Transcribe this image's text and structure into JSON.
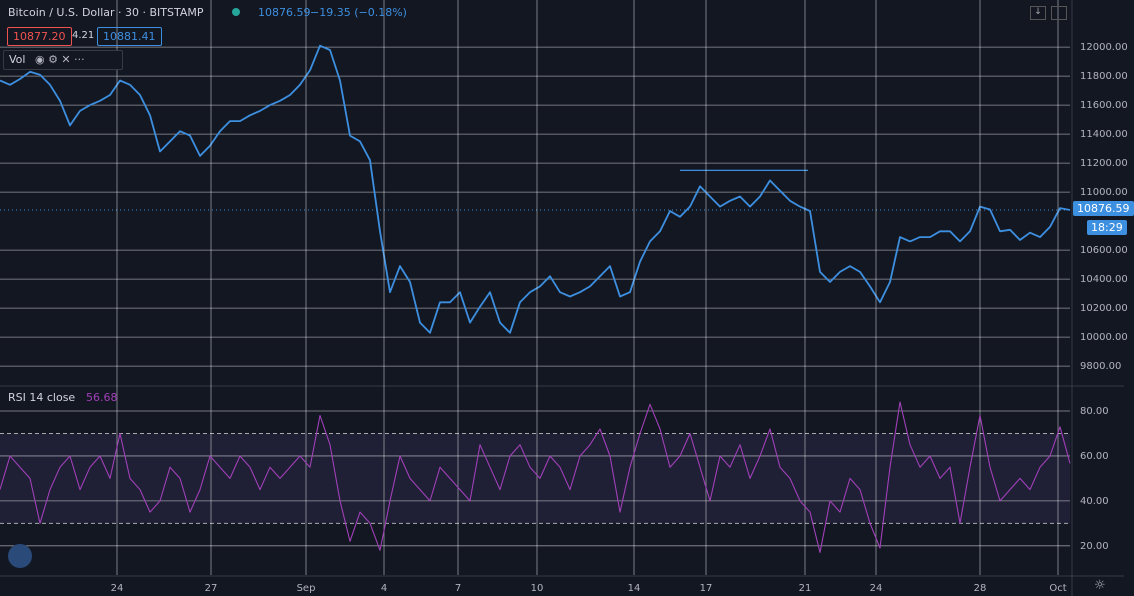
{
  "header": {
    "symbol": "Bitcoin / U.S. Dollar · 30 · BITSTAMP",
    "change": "−19.35 (−0.18%)",
    "bid": "10877.20",
    "spread": "4.21",
    "ask": "10881.41",
    "volume_label": "Vol",
    "countdown": "18:29"
  },
  "chart_data": [
    {
      "type": "line",
      "name": "price",
      "color": "#3d8fe0",
      "xlim": [
        0,
        107
      ],
      "ylim": [
        9670,
        12325
      ],
      "yticks": [
        {
          "value": 12000,
          "label": "12000.00"
        },
        {
          "value": 11800,
          "label": "11800.00"
        },
        {
          "value": 11600,
          "label": "11600.00"
        },
        {
          "value": 11400,
          "label": "11400.00"
        },
        {
          "value": 11200,
          "label": "11200.00"
        },
        {
          "value": 11000,
          "label": "11000.00"
        },
        {
          "value": 10600,
          "label": "10600.00"
        },
        {
          "value": 10400,
          "label": "10400.00"
        },
        {
          "value": 10200,
          "label": "10200.00"
        },
        {
          "value": 10000,
          "label": "10000.00"
        },
        {
          "value": 9800,
          "label": "9800.00"
        }
      ],
      "grid": true,
      "values": [
        11770,
        11740,
        11780,
        11830,
        11810,
        11740,
        11630,
        11460,
        11560,
        11600,
        11630,
        11670,
        11770,
        11740,
        11670,
        11530,
        11280,
        11350,
        11420,
        11390,
        11250,
        11320,
        11420,
        11490,
        11490,
        11530,
        11560,
        11600,
        11630,
        11670,
        11740,
        11840,
        12010,
        11980,
        11770,
        11390,
        11350,
        11220,
        10730,
        10310,
        10490,
        10380,
        10100,
        10030,
        10240,
        10240,
        10310,
        10100,
        10210,
        10310,
        10100,
        10030,
        10240,
        10310,
        10350,
        10420,
        10310,
        10280,
        10310,
        10350,
        10420,
        10490,
        10280,
        10310,
        10520,
        10660,
        10730,
        10870,
        10830,
        10900,
        11040,
        10970,
        10900,
        10940,
        10970,
        10900,
        10970,
        11080,
        11010,
        10940,
        10900,
        10870,
        10450,
        10380,
        10450,
        10490,
        10450,
        10350,
        10240,
        10380,
        10690,
        10660,
        10690,
        10690,
        10730,
        10730,
        10660,
        10730,
        10900,
        10880,
        10730,
        10740,
        10670,
        10720,
        10690,
        10760,
        10890,
        10876.59
      ],
      "trendline": {
        "x": [
          68,
          80.8
        ],
        "value": 11150,
        "color": "#3d8fe0"
      }
    },
    {
      "type": "line",
      "name": "rsi",
      "label": "RSI 14 close",
      "color": "#a040b8",
      "xlim": [
        0,
        107
      ],
      "ylim": [
        7,
        90.7
      ],
      "yticks": [
        {
          "value": 80,
          "label": "80.00"
        },
        {
          "value": 60,
          "label": "60.00"
        },
        {
          "value": 40,
          "label": "40.00"
        },
        {
          "value": 20,
          "label": "20.00"
        }
      ],
      "band": [
        30,
        70
      ],
      "grid": true,
      "xticks": [
        {
          "value": 11.7,
          "label": "24"
        },
        {
          "value": 21.1,
          "label": "27"
        },
        {
          "value": 30.6,
          "label": "Sep"
        },
        {
          "value": 38.4,
          "label": "4"
        },
        {
          "value": 45.8,
          "label": "7"
        },
        {
          "value": 53.7,
          "label": "10"
        },
        {
          "value": 63.4,
          "label": "14"
        },
        {
          "value": 70.6,
          "label": "17"
        },
        {
          "value": 80.5,
          "label": "21"
        },
        {
          "value": 87.6,
          "label": "24"
        },
        {
          "value": 98,
          "label": "28"
        },
        {
          "value": 105.8,
          "label": "Oct"
        }
      ],
      "values": [
        45,
        60,
        55,
        50,
        30,
        45,
        55,
        60,
        45,
        55,
        60,
        50,
        70,
        50,
        45,
        35,
        40,
        55,
        50,
        35,
        45,
        60,
        55,
        50,
        60,
        55,
        45,
        55,
        50,
        55,
        60,
        55,
        78,
        65,
        40,
        22,
        35,
        30,
        18,
        40,
        60,
        50,
        45,
        40,
        55,
        50,
        45,
        40,
        65,
        55,
        45,
        60,
        65,
        55,
        50,
        60,
        55,
        45,
        60,
        65,
        72,
        60,
        35,
        55,
        70,
        83,
        72,
        55,
        60,
        70,
        55,
        40,
        60,
        55,
        65,
        50,
        60,
        72,
        55,
        50,
        40,
        35,
        17,
        40,
        35,
        50,
        45,
        30,
        19,
        55,
        84,
        65,
        55,
        60,
        50,
        55,
        30,
        55,
        78,
        55,
        40,
        45,
        50,
        45,
        55,
        60,
        73,
        56.68
      ]
    }
  ]
}
